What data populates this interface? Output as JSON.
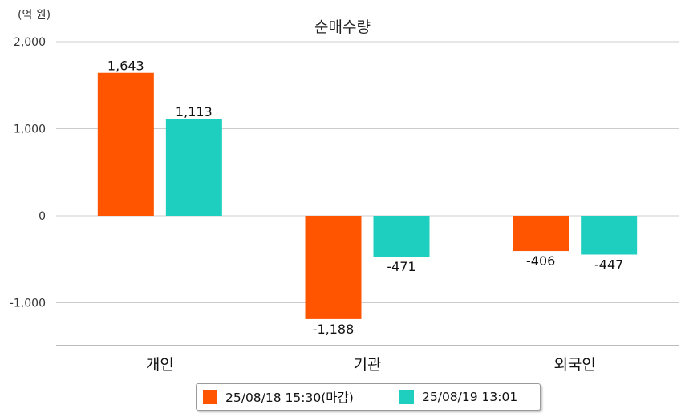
{
  "chart_data": {
    "type": "bar",
    "title": "순매수량",
    "unit": "(억 원)",
    "categories": [
      "개인",
      "기관",
      "외국인"
    ],
    "series": [
      {
        "name": "25/08/18 15:30(마감)",
        "color": "#ff5500",
        "values": [
          1643,
          -1188,
          -406
        ]
      },
      {
        "name": "25/08/19 13:01",
        "color": "#1ecfc0",
        "values": [
          1113,
          -471,
          -447
        ]
      }
    ],
    "ylim": [
      -1500,
      2000
    ],
    "yticks": [
      -1000,
      0,
      1000,
      2000
    ],
    "grid": true,
    "legend_position": "bottom"
  }
}
